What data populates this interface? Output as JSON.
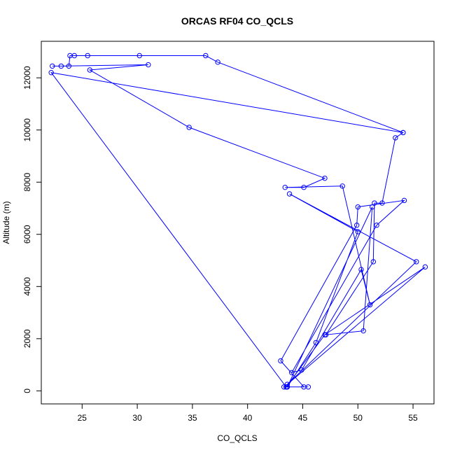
{
  "chart_data": {
    "type": "line",
    "title": "ORCAS RF04 CO_QCLS",
    "xlabel": "CO_QCLS",
    "ylabel": "Altitude (m)",
    "xlim": [
      21.3,
      56.9
    ],
    "ylim": [
      -500,
      13400
    ],
    "xticks": [
      25,
      30,
      35,
      40,
      45,
      50,
      55
    ],
    "yticks": [
      0,
      2000,
      4000,
      6000,
      8000,
      10000,
      12000
    ],
    "grid": false,
    "legend": "none",
    "series_color": "#0000ff",
    "points": [
      [
        43.5,
        150
      ],
      [
        43.3,
        150
      ],
      [
        43.6,
        150
      ],
      [
        45.5,
        150
      ],
      [
        45.1,
        150
      ],
      [
        43.0,
        1150
      ],
      [
        49.9,
        6350
      ],
      [
        50.0,
        7050
      ],
      [
        54.2,
        7300
      ],
      [
        51.7,
        6350
      ],
      [
        44.0,
        700
      ],
      [
        44.9,
        800
      ],
      [
        50.3,
        4650
      ],
      [
        51.1,
        3300
      ],
      [
        48.6,
        7850
      ],
      [
        43.4,
        7800
      ],
      [
        45.1,
        7800
      ],
      [
        47.0,
        8150
      ],
      [
        34.7,
        10100
      ],
      [
        25.7,
        12300
      ],
      [
        31.0,
        12500
      ],
      [
        23.1,
        12450
      ],
      [
        22.3,
        12450
      ],
      [
        23.8,
        12450
      ],
      [
        23.9,
        12850
      ],
      [
        24.3,
        12850
      ],
      [
        25.5,
        12850
      ],
      [
        30.2,
        12850
      ],
      [
        36.2,
        12850
      ],
      [
        37.3,
        12600
      ],
      [
        54.1,
        9900
      ],
      [
        53.4,
        9700
      ],
      [
        52.2,
        7200
      ],
      [
        51.5,
        7200
      ],
      [
        51.4,
        4950
      ],
      [
        47.1,
        2150
      ],
      [
        50.5,
        2300
      ],
      [
        51.3,
        7050
      ],
      [
        43.6,
        150
      ],
      [
        46.2,
        1850
      ],
      [
        50.0,
        6100
      ],
      [
        43.8,
        7550
      ],
      [
        55.3,
        4950
      ],
      [
        43.6,
        250
      ],
      [
        56.1,
        4750
      ],
      [
        47.0,
        2150
      ],
      [
        43.5,
        150
      ],
      [
        22.2,
        12200
      ],
      [
        54.1,
        9900
      ]
    ]
  }
}
